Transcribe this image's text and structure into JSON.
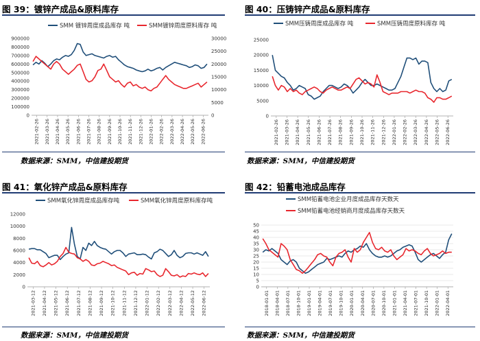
{
  "source_label": "数据来源：SMM，中信建投期货",
  "colors": {
    "blue": "#1f4e79",
    "red": "#e8262d",
    "rule": "#1f3b73"
  },
  "charts": [
    {
      "title": "图 39：镀锌产成品&原料库存",
      "chart_data": {
        "type": "line",
        "dual_axis": true,
        "series": [
          {
            "name": "SMM 镀锌周度成品库存 吨",
            "color": "#1f4e79",
            "axis": "left",
            "values": [
              590000,
              620000,
              600000,
              640000,
              610000,
              570000,
              600000,
              640000,
              660000,
              650000,
              680000,
              700000,
              690000,
              710000,
              760000,
              840000,
              830000,
              740000,
              700000,
              710000,
              720000,
              700000,
              690000,
              680000,
              670000,
              690000,
              700000,
              680000,
              690000,
              650000,
              620000,
              590000,
              570000,
              560000,
              550000,
              530000,
              520000,
              510000,
              520000,
              540000,
              520000,
              530000,
              550000,
              560000,
              530000,
              560000,
              580000,
              600000,
              620000,
              610000,
              600000,
              590000,
              580000,
              560000,
              570000,
              590000,
              580000,
              550000,
              560000,
              600000
            ]
          },
          {
            "name": "SMM镀锌周度原料库存 吨",
            "color": "#e8262d",
            "axis": "right",
            "values": [
              21000,
              23000,
              22000,
              21000,
              20000,
              19000,
              18000,
              20000,
              21000,
              20000,
              18000,
              17000,
              16000,
              17000,
              18000,
              19500,
              20000,
              17000,
              14000,
              13000,
              13500,
              15000,
              17500,
              18000,
              20000,
              17500,
              15000,
              14000,
              13000,
              13500,
              12000,
              11000,
              12500,
              13000,
              11500,
              12000,
              11000,
              10500,
              11000,
              10000,
              9500,
              10500,
              11000,
              12500,
              14000,
              15500,
              14000,
              13000,
              12000,
              11500,
              11000,
              10500,
              10500,
              11000,
              11500,
              12000,
              12500,
              11000,
              12000,
              13000
            ]
          }
        ],
        "x_ticks": [
          "2021-02-26",
          "2021-03-26",
          "2021-04-26",
          "2021-05-26",
          "2021-06-26",
          "2021-07-26",
          "2021-08-26",
          "2021-09-26",
          "2021-10-26",
          "2021-11-26",
          "2021-12-26",
          "2022-01-26",
          "2022-02-26",
          "2022-03-26",
          "2022-04-26",
          "2022-05-26",
          "2022-06-26"
        ],
        "y_left": {
          "range": [
            0,
            900000
          ],
          "ticks": [
            "0",
            "100000",
            "200000",
            "300000",
            "400000",
            "500000",
            "600000",
            "700000",
            "800000",
            "900000"
          ]
        },
        "y_right": {
          "range": [
            0,
            30000
          ],
          "ticks": [
            "0",
            "5000",
            "10000",
            "15000",
            "20000",
            "25000",
            "30000"
          ]
        }
      }
    },
    {
      "title": "图 40：压铸锌产成品&原料库存",
      "chart_data": {
        "type": "line",
        "dual_axis": false,
        "series": [
          {
            "name": "SMM压铸周度成品库存 吨",
            "color": "#1f4e79",
            "values": [
              20000,
              15000,
              14000,
              13000,
              12500,
              11000,
              10000,
              8500,
              9000,
              10000,
              9500,
              9000,
              7000,
              6500,
              5500,
              6000,
              6500,
              8000,
              9000,
              10000,
              10000,
              9500,
              9000,
              9500,
              10500,
              10000,
              9000,
              7500,
              8500,
              9500,
              11000,
              12000,
              11000,
              10000,
              10000,
              10500,
              10000,
              9500,
              9000,
              8500,
              8500,
              9000,
              11000,
              13000,
              16000,
              19000,
              19000,
              18500,
              19000,
              17000,
              18000,
              18000,
              17500,
              11000,
              9000,
              8000,
              9000,
              8000,
              8500,
              11500,
              12000
            ]
          },
          {
            "name": "SMM压铸周度原料库存 吨",
            "color": "#e8262d",
            "values": [
              13000,
              10000,
              8500,
              10000,
              9500,
              8000,
              9000,
              8000,
              8500,
              7500,
              7000,
              8000,
              8500,
              9000,
              9500,
              9000,
              8000,
              7500,
              8500,
              9000,
              9500,
              9000,
              8500,
              8500,
              9000,
              9500,
              9000,
              10500,
              12000,
              12500,
              11500,
              10500,
              11000,
              10500,
              9500,
              13500,
              11000,
              8000,
              7500,
              7000,
              7500,
              7500,
              7500,
              8000,
              8000,
              8000,
              7500,
              8000,
              8500,
              8000,
              8000,
              7500,
              6000,
              5500,
              4500,
              6000,
              6000,
              5500,
              5500,
              6000,
              6500
            ]
          }
        ],
        "x_ticks": [
          "2021-02-26",
          "2021-03-26",
          "2021-04-26",
          "2021-05-26",
          "2021-06-26",
          "2021-07-26",
          "2021-08-26",
          "2021-09-26",
          "2021-10-26",
          "2021-11-26",
          "2021-12-26",
          "2022-01-26",
          "2022-02-26",
          "2022-03-26",
          "2022-04-26",
          "2022-05-26",
          "2022-06-26"
        ],
        "y_left": {
          "range": [
            0,
            25000
          ],
          "ticks": [
            "0",
            "5000",
            "10000",
            "15000",
            "20000",
            "25000"
          ]
        }
      }
    },
    {
      "title": "图 41：氧化锌产成品&原料库存",
      "chart_data": {
        "type": "line",
        "dual_axis": false,
        "series": [
          {
            "name": "SMM氧化锌周度成品库存吨",
            "color": "#1f4e79",
            "values": [
              6200,
              6300,
              6300,
              6100,
              6100,
              5800,
              5500,
              4800,
              5000,
              5200,
              5200,
              4500,
              5000,
              5400,
              5600,
              9800,
              7000,
              5000,
              4600,
              6500,
              6000,
              7200,
              6800,
              7500,
              6800,
              6500,
              6300,
              6200,
              5800,
              5400,
              5800,
              6000,
              6000,
              5600,
              5000,
              5400,
              5500,
              5600,
              5300,
              5300,
              5400,
              5300,
              4900,
              4600,
              5600,
              5800,
              6200,
              6000,
              5500,
              5000,
              5300,
              6000,
              5200,
              4800,
              5000,
              5500,
              5600,
              5600,
              5400,
              5600,
              5400,
              5200,
              5800,
              5000
            ]
          },
          {
            "name": "SMM氧化锌周度原料库存吨",
            "color": "#e8262d",
            "values": [
              4800,
              3900,
              3800,
              4200,
              3500,
              3300,
              3600,
              4000,
              3600,
              3800,
              4200,
              5000,
              5500,
              6500,
              5700,
              5500,
              5400,
              4800,
              4600,
              4200,
              4500,
              4200,
              3600,
              3500,
              3800,
              3900,
              4200,
              4000,
              3800,
              3500,
              3600,
              3200,
              3000,
              2800,
              2600,
              2000,
              2300,
              2400,
              1900,
              2200,
              2100,
              3000,
              2800,
              2500,
              2600,
              2000,
              1700,
              1900,
              3000,
              2500,
              1900,
              1800,
              2000,
              1600,
              1800,
              1700,
              2200,
              2100,
              2300,
              2100,
              2000,
              2300,
              1700,
              2200
            ]
          }
        ],
        "x_ticks": [
          "2021-03-12",
          "2021-04-12",
          "2021-05-12",
          "2021-06-12",
          "2021-07-12",
          "2021-08-12",
          "2021-09-12",
          "2021-10-12",
          "2021-11-12",
          "2021-12-12",
          "2022-01-12",
          "2022-02-12",
          "2022-03-12",
          "2022-04-12",
          "2022-05-12",
          "2022-06-12"
        ],
        "y_left": {
          "range": [
            0,
            12000
          ],
          "ticks": [
            "0",
            "2000",
            "4000",
            "6000",
            "8000",
            "10000",
            "12000"
          ]
        }
      }
    },
    {
      "title": "图 42：铅蓄电池成品库存",
      "chart_data": {
        "type": "line",
        "dual_axis": false,
        "series": [
          {
            "name": "SMM铅蓄电池企业月度成品库存天数天",
            "color": "#1f4e79",
            "values": [
              28,
              30,
              29,
              31,
              29,
              27,
              22,
              20,
              18,
              21,
              22,
              20,
              15,
              13,
              11,
              12,
              14,
              16,
              18,
              19,
              20,
              23,
              22,
              23,
              24,
              25,
              24,
              27,
              29,
              28,
              30,
              31,
              33,
              32,
              35,
              30,
              27,
              25,
              24,
              24,
              25,
              24,
              25,
              27,
              29,
              30,
              32,
              33,
              34,
              33,
              28,
              22,
              20,
              22,
              24,
              26,
              27,
              25,
              23,
              26,
              28,
              38,
              43
            ]
          },
          {
            "name": "SMM铅蓄电池经销商月度成品库存天数天",
            "color": "#e8262d",
            "values": [
              39,
              35,
              30,
              28,
              26,
              24,
              35,
              33,
              30,
              22,
              18,
              14,
              13,
              11,
              13,
              16,
              19,
              22,
              26,
              27,
              25,
              24,
              20,
              17,
              24,
              27,
              28,
              30,
              24,
              20,
              31,
              28,
              30,
              36,
              40,
              44,
              36,
              31,
              30,
              32,
              29,
              28,
              30,
              25,
              22,
              24,
              26,
              31,
              29,
              30,
              29,
              27,
              26,
              29,
              31,
              27,
              25,
              26,
              27,
              29,
              27,
              28,
              28
            ]
          }
        ],
        "x_ticks": [
          "2018-01-01",
          "2018-04-01",
          "2018-07-01",
          "2018-10-01",
          "2019-01-01",
          "2019-04-01",
          "2019-07-01",
          "2019-10-01",
          "2020-01-01",
          "2020-04-01",
          "2020-07-01",
          "2020-10-01",
          "2021-01-01",
          "2021-04-01",
          "2021-07-01",
          "2021-10-01",
          "2022-01-01",
          "2022-04-01"
        ],
        "y_left": {
          "range": [
            0,
            50
          ],
          "ticks": [
            "0",
            "5",
            "10",
            "15",
            "20",
            "25",
            "30",
            "35",
            "40",
            "45",
            "50"
          ]
        }
      }
    }
  ]
}
